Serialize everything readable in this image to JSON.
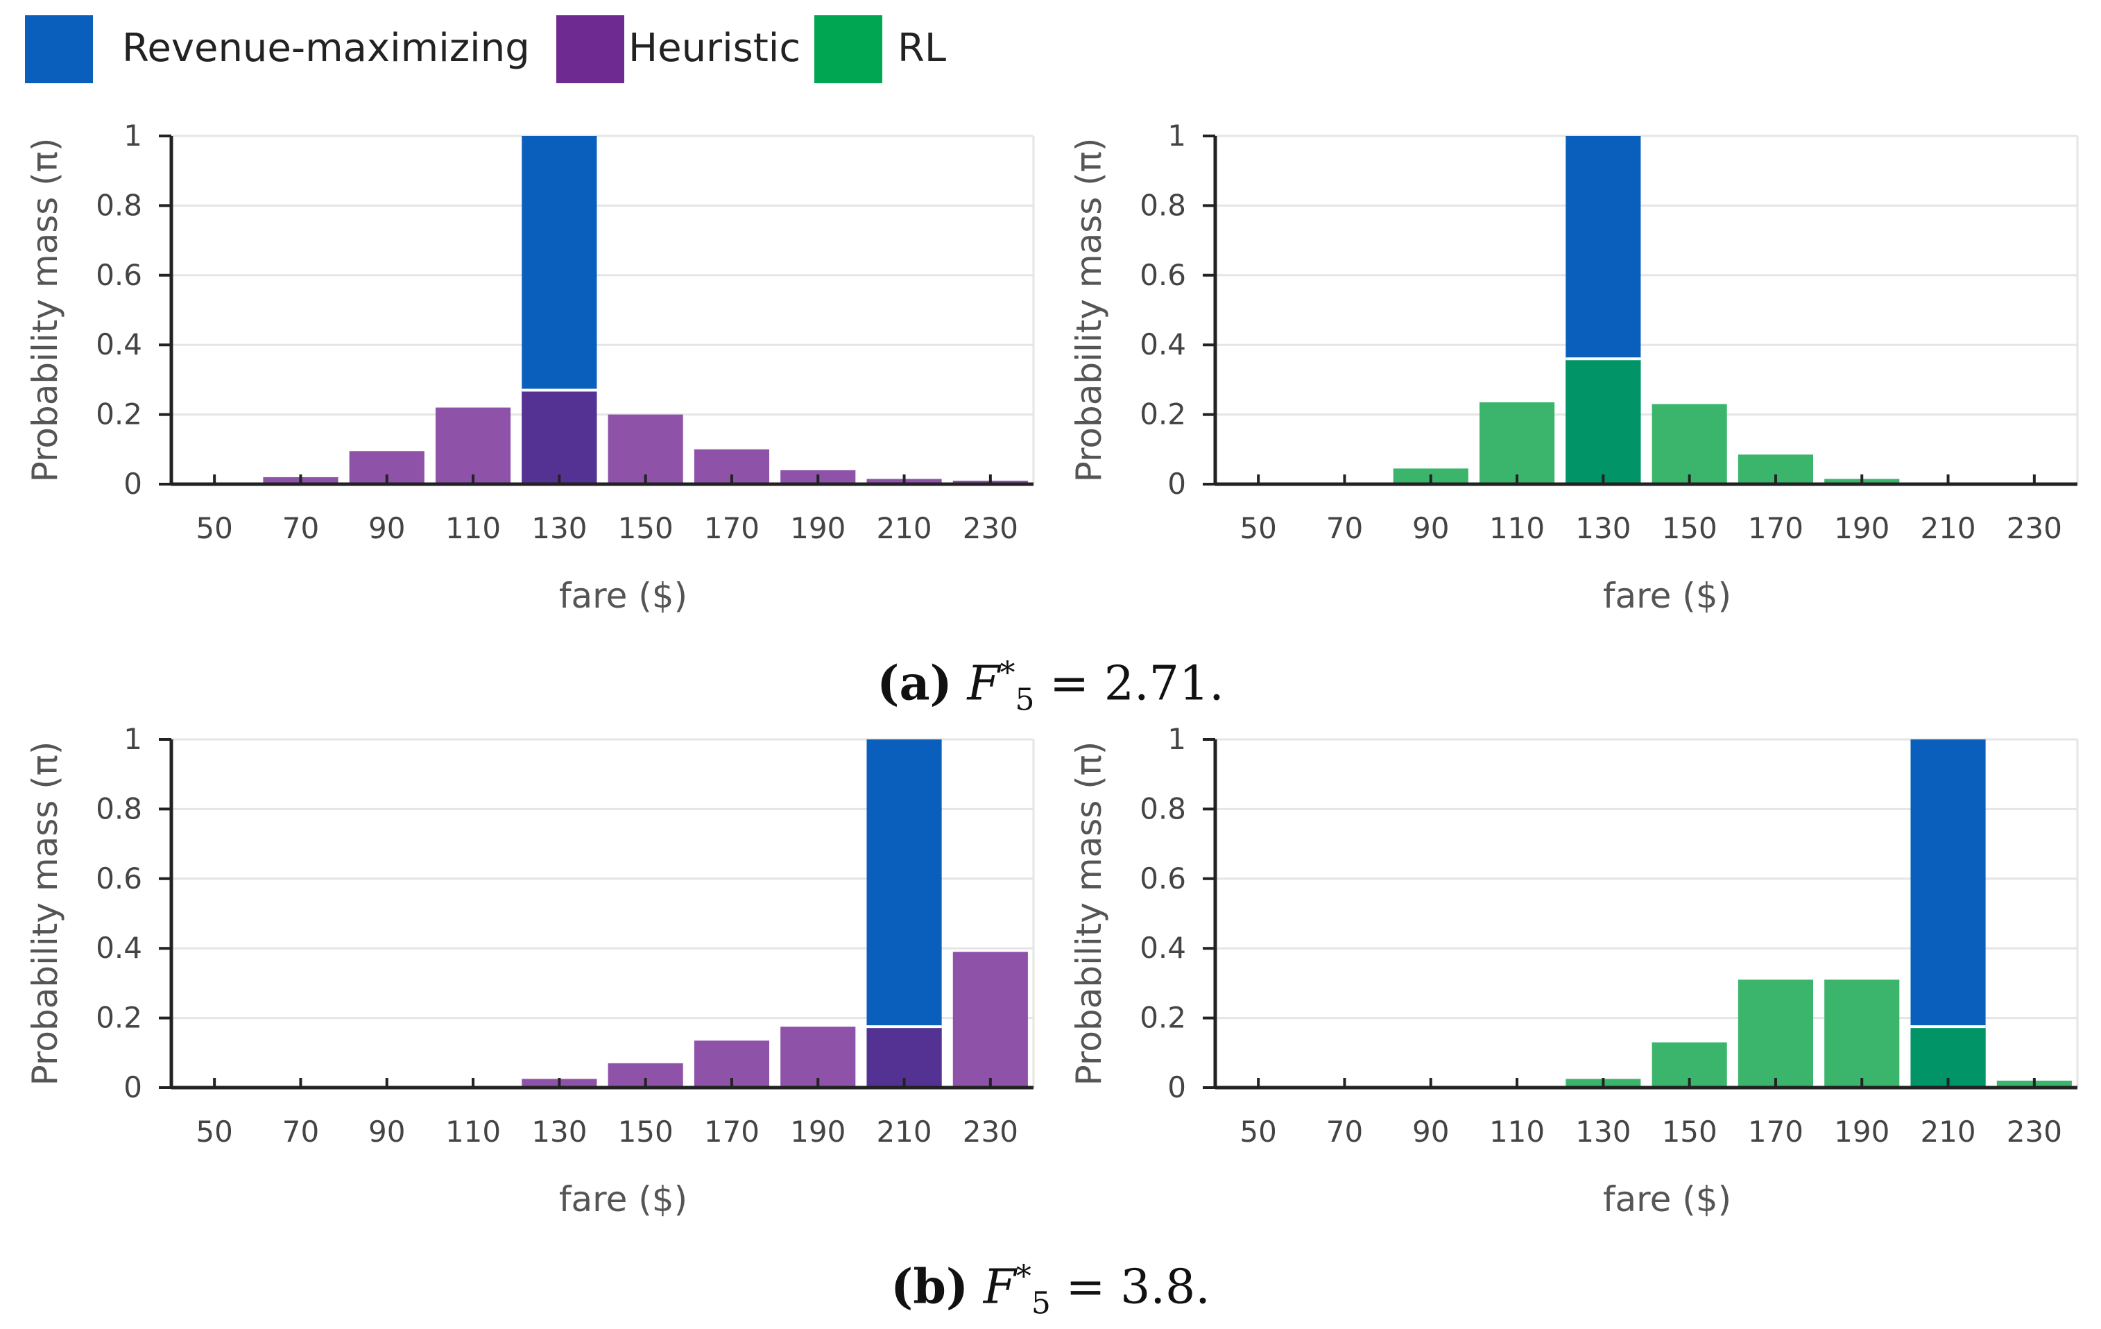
{
  "legend": [
    {
      "label": "Revenue-maximizing",
      "color": "#0a5fbd"
    },
    {
      "label": "Heuristic",
      "color": "#6e2a90"
    },
    {
      "label": "RL",
      "color": "#00a651"
    }
  ],
  "captions": {
    "a": {
      "tag": "(a)",
      "var": "F",
      "sub": "5",
      "sup": "*",
      "rest": " = 2.71."
    },
    "b": {
      "tag": "(b)",
      "var": "F",
      "sub": "5",
      "sup": "*",
      "rest": " = 3.8."
    }
  },
  "colors": {
    "revenue": "#0a5fbd",
    "heuristic": "#8e52a9",
    "heuristic_overlap": "#533293",
    "rl": "#3cb56c",
    "rl_overlap": "#009467",
    "grid": "#e5e5e5"
  },
  "chart_data": [
    {
      "type": "bar",
      "id": "a-heuristic",
      "xlabel": "fare ($)",
      "ylabel": "Probability mass (π)",
      "ylim": [
        0,
        1
      ],
      "yticks": [
        "0",
        "0.2",
        "0.4",
        "0.6",
        "0.8",
        "1"
      ],
      "categories": [
        "50",
        "70",
        "90",
        "110",
        "130",
        "150",
        "170",
        "190",
        "210",
        "230"
      ],
      "series": [
        {
          "name": "Revenue-maximizing",
          "values": [
            0,
            0,
            0,
            0,
            1,
            0,
            0,
            0,
            0,
            0
          ]
        },
        {
          "name": "Heuristic",
          "values": [
            0,
            0.02,
            0.095,
            0.22,
            0.27,
            0.2,
            0.1,
            0.04,
            0.015,
            0.01
          ]
        }
      ]
    },
    {
      "type": "bar",
      "id": "a-rl",
      "xlabel": "fare ($)",
      "ylabel": "Probability mass (π)",
      "ylim": [
        0,
        1
      ],
      "yticks": [
        "0",
        "0.2",
        "0.4",
        "0.6",
        "0.8",
        "1"
      ],
      "categories": [
        "50",
        "70",
        "90",
        "110",
        "130",
        "150",
        "170",
        "190",
        "210",
        "230"
      ],
      "series": [
        {
          "name": "Revenue-maximizing",
          "values": [
            0,
            0,
            0,
            0,
            1,
            0,
            0,
            0,
            0,
            0
          ]
        },
        {
          "name": "RL",
          "values": [
            0,
            0,
            0.045,
            0.235,
            0.36,
            0.23,
            0.085,
            0.015,
            0,
            0
          ]
        }
      ]
    },
    {
      "type": "bar",
      "id": "b-heuristic",
      "xlabel": "fare ($)",
      "ylabel": "Probability mass (π)",
      "ylim": [
        0,
        1
      ],
      "yticks": [
        "0",
        "0.2",
        "0.4",
        "0.6",
        "0.8",
        "1"
      ],
      "categories": [
        "50",
        "70",
        "90",
        "110",
        "130",
        "150",
        "170",
        "190",
        "210",
        "230"
      ],
      "series": [
        {
          "name": "Revenue-maximizing",
          "values": [
            0,
            0,
            0,
            0,
            0,
            0,
            0,
            0,
            1,
            0
          ]
        },
        {
          "name": "Heuristic",
          "values": [
            0,
            0,
            0,
            0,
            0.025,
            0.07,
            0.135,
            0.175,
            0.175,
            0.39
          ]
        }
      ]
    },
    {
      "type": "bar",
      "id": "b-rl",
      "xlabel": "fare ($)",
      "ylabel": "Probability mass (π)",
      "ylim": [
        0,
        1
      ],
      "yticks": [
        "0",
        "0.2",
        "0.4",
        "0.6",
        "0.8",
        "1"
      ],
      "categories": [
        "50",
        "70",
        "90",
        "110",
        "130",
        "150",
        "170",
        "190",
        "210",
        "230"
      ],
      "series": [
        {
          "name": "Revenue-maximizing",
          "values": [
            0,
            0,
            0,
            0,
            0,
            0,
            0,
            0,
            1,
            0
          ]
        },
        {
          "name": "RL",
          "values": [
            0,
            0,
            0,
            0,
            0.025,
            0.13,
            0.31,
            0.31,
            0.175,
            0.02
          ]
        }
      ]
    }
  ]
}
